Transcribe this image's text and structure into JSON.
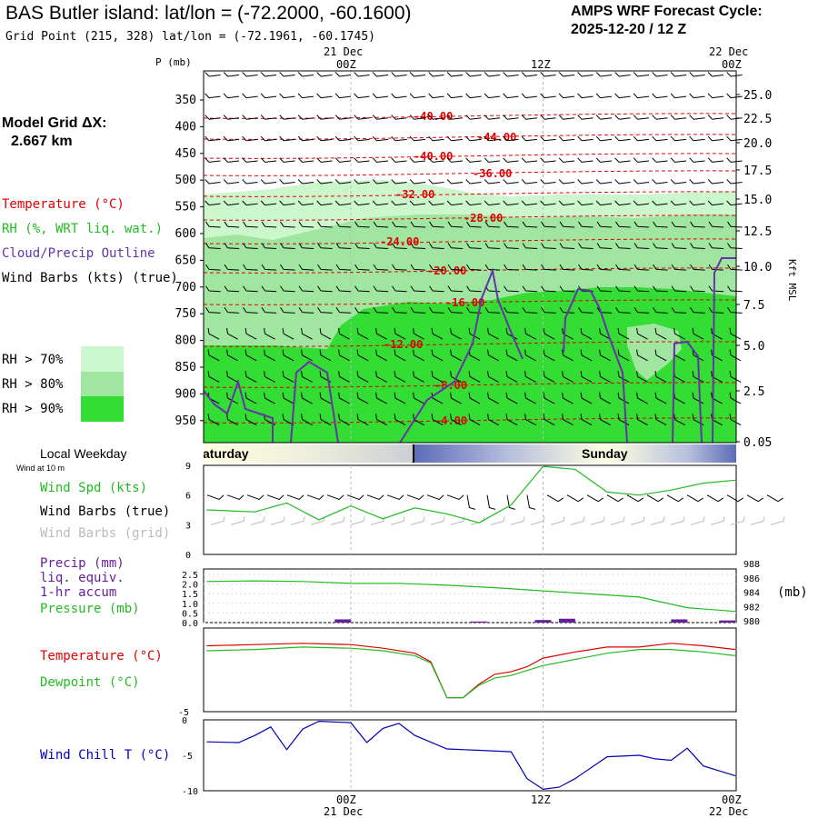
{
  "header": {
    "title": "BAS Butler island:  lat/lon = (-72.2000, -60.1600)",
    "subtitle": "Grid Point (215, 328) lat/lon = (-72.1961, -60.1745)",
    "cycle_line1": "AMPS WRF Forecast Cycle:",
    "cycle_line2": "2025-12-20 / 12  Z"
  },
  "sidebar": {
    "model_grid_line1": "Model Grid ΔX:",
    "model_grid_line2": "2.667 km",
    "legend_temperature": "Temperature (°C)",
    "legend_rh": "RH (%, WRT liq. wat.)",
    "legend_cloud": "Cloud/Precip Outline",
    "legend_wind": "Wind Barbs (kts) (true)",
    "rh_keys": [
      {
        "label": "RH > 70%",
        "color": "#ccf7cc"
      },
      {
        "label": "RH > 80%",
        "color": "#a0e6a0"
      },
      {
        "label": "RH > 90%",
        "color": "#33dd33"
      }
    ]
  },
  "colors": {
    "temperature": "#e00000",
    "rh_text": "#22bb22",
    "cloud": "#6633aa",
    "wind_chill": "#0000bb",
    "pressure": "#22bb22",
    "precip": "#661f99",
    "dewpoint": "#22bb22",
    "weekday_band": "#5c6cb8"
  },
  "time_axis": {
    "top_labels": [
      {
        "date": "21 Dec",
        "hour": "00Z"
      },
      {
        "date": "",
        "hour": "12Z"
      },
      {
        "date": "22 Dec",
        "hour": "00Z"
      }
    ],
    "bottom_labels": [
      {
        "hour": "00Z",
        "date": "21 Dec"
      },
      {
        "hour": "12Z",
        "date": ""
      },
      {
        "hour": "00Z",
        "date": "22 Dec"
      }
    ]
  },
  "weekday": {
    "label": "Local Weekday",
    "sublabel": "Wind at 10 m",
    "left_day": "aturday",
    "right_day": "Sunday"
  },
  "panel_labels": {
    "wind_spd": "Wind Spd (kts)",
    "wind_barbs_true": "Wind Barbs (true)",
    "wind_barbs_grid": "Wind Barbs (grid)",
    "precip1": "Precip (mm)",
    "precip2": "liq. equiv.",
    "precip3": "1-hr accum",
    "pressure": "Pressure (mb)",
    "pressure_unit": "(mb)",
    "temperature": "Temperature (°C)",
    "dewpoint": "Dewpoint (°C)",
    "wind_chill": "Wind Chill T (°C)"
  },
  "chart_data": [
    {
      "type": "heatmap",
      "title": "Time-height cross section",
      "ylabel": "P (mb)",
      "y2label": "Kft MSL",
      "x_range_hours": [
        -9,
        24
      ],
      "pressure_ticks": [
        "350",
        "400",
        "450",
        "500",
        "550",
        "600",
        "650",
        "700",
        "750",
        "800",
        "850",
        "900",
        "950"
      ],
      "height_ticks": [
        "25.0",
        "22.5",
        "20.0",
        "17.5",
        "15.0",
        "12.5",
        "10.0",
        "7.5",
        "5.0",
        "2.5",
        "0.05"
      ],
      "temperature_labels": [
        "-40.00",
        "-44.00",
        "-40.00",
        "-36.00",
        "-32.00",
        "-28.00",
        "-24.00",
        "-20.00",
        "-16.00",
        "-12.00",
        "-8.00",
        "-4.00"
      ]
    },
    {
      "type": "line",
      "title": "Wind Spd (kts)",
      "ylim": [
        0,
        9
      ],
      "yticks": [
        "9",
        "6",
        "3",
        "0"
      ],
      "x_hours": [
        -9,
        -6,
        -4,
        -2,
        0,
        2,
        4,
        6,
        8,
        10,
        12,
        14,
        16,
        18,
        20,
        22,
        24
      ],
      "values": [
        4.5,
        4.3,
        5.2,
        3.5,
        4.9,
        3.6,
        4.7,
        4.1,
        3.2,
        5.0,
        8.9,
        8.6,
        6.3,
        6.0,
        6.5,
        7.2,
        7.5
      ]
    },
    {
      "type": "line",
      "title": "Precip (mm) / Pressure (mb)",
      "precip_yticks": [
        "2.5",
        "2.0",
        "1.5",
        "1.0",
        "0.5",
        "0.0"
      ],
      "pressure_yticks": [
        "988",
        "986",
        "984",
        "982",
        "980"
      ],
      "x_hours": [
        -9,
        -6,
        -3,
        0,
        3,
        6,
        9,
        12,
        15,
        18,
        21,
        24
      ],
      "pressure_values": [
        986.0,
        986.1,
        986.0,
        985.7,
        985.7,
        985.4,
        985.0,
        984.5,
        984.0,
        983.5,
        981.8,
        981.2
      ],
      "precip_bars": [
        {
          "hour": -0.5,
          "value": 0.15
        },
        {
          "hour": 8,
          "value": 0.05
        },
        {
          "hour": 12,
          "value": 0.12
        },
        {
          "hour": 13.5,
          "value": 0.18
        },
        {
          "hour": 20.5,
          "value": 0.15
        },
        {
          "hour": 23.5,
          "value": 0.1
        }
      ]
    },
    {
      "type": "line",
      "title": "Temperature / Dewpoint (°C)",
      "ylim": [
        -5,
        0
      ],
      "yticks": [
        "-5"
      ],
      "x_hours": [
        -9,
        -6,
        -3,
        0,
        2,
        4,
        5,
        6,
        7,
        8,
        9,
        10,
        11,
        12,
        14,
        16,
        18,
        20,
        22,
        24
      ],
      "temperature": [
        -0.7,
        -0.6,
        -0.5,
        -0.6,
        -0.9,
        -1.3,
        -2.0,
        -4.9,
        -4.9,
        -3.8,
        -3.0,
        -2.8,
        -2.4,
        -1.7,
        -1.2,
        -0.8,
        -0.8,
        -0.5,
        -0.7,
        -1.0
      ],
      "dewpoint": [
        -1.1,
        -1.0,
        -0.8,
        -0.9,
        -1.1,
        -1.5,
        -2.1,
        -4.9,
        -4.9,
        -3.9,
        -3.3,
        -3.1,
        -2.7,
        -2.3,
        -1.8,
        -1.3,
        -1.0,
        -1.0,
        -1.2,
        -1.5
      ]
    },
    {
      "type": "line",
      "title": "Wind Chill T (°C)",
      "ylim": [
        -10,
        0
      ],
      "yticks": [
        "0",
        "-5",
        "-10"
      ],
      "x_hours": [
        -9,
        -7,
        -6,
        -5,
        -4,
        -3,
        -2,
        0,
        1,
        2,
        3,
        4,
        6,
        8,
        10,
        11,
        12,
        13,
        14,
        16,
        18,
        19,
        20,
        21,
        22,
        24
      ],
      "values": [
        -3.1,
        -3.2,
        -2.2,
        -1.0,
        -4.2,
        -1.3,
        -0.2,
        -0.4,
        -3.2,
        -1.2,
        -0.5,
        -2.2,
        -4.1,
        -4.3,
        -4.5,
        -8.3,
        -9.8,
        -9.5,
        -8.3,
        -5.2,
        -5.0,
        -5.5,
        -5.7,
        -4.0,
        -6.5,
        -7.9
      ]
    }
  ]
}
